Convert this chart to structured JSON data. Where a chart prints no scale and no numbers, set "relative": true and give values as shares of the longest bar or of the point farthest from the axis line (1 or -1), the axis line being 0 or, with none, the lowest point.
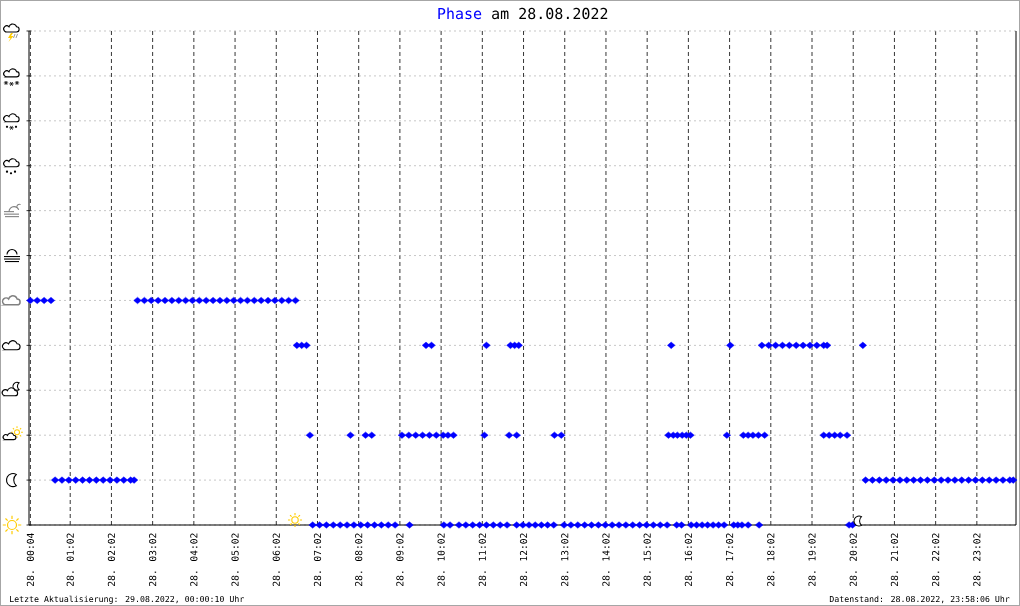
{
  "chart_data": {
    "type": "scatter",
    "title": "am 28.08.2022",
    "relative": true,
    "grid": true,
    "legend": "top",
    "marker": "diamond",
    "annotations": [
      "Letzte Aktualisierung: 29.08.2022, 00:00:10 Uhr",
      "Datenstand: 28.08.2022, 23:58:06 Uhr"
    ],
    "xlim": [
      "2022-08-28T00:02",
      "2022-08-28T23:59"
    ],
    "xticks": [
      {
        "value": "2022-08-28T00:04",
        "label": "28. 00:04"
      },
      {
        "value": "2022-08-28T01:02",
        "label": "28. 01:02"
      },
      {
        "value": "2022-08-28T02:02",
        "label": "28. 02:02"
      },
      {
        "value": "2022-08-28T03:02",
        "label": "28. 03:02"
      },
      {
        "value": "2022-08-28T04:02",
        "label": "28. 04:02"
      },
      {
        "value": "2022-08-28T05:02",
        "label": "28. 05:02"
      },
      {
        "value": "2022-08-28T06:02",
        "label": "28. 06:02"
      },
      {
        "value": "2022-08-28T07:02",
        "label": "28. 07:02"
      },
      {
        "value": "2022-08-28T08:02",
        "label": "28. 08:02"
      },
      {
        "value": "2022-08-28T09:02",
        "label": "28. 09:02"
      },
      {
        "value": "2022-08-28T10:02",
        "label": "28. 10:02"
      },
      {
        "value": "2022-08-28T11:02",
        "label": "28. 11:02"
      },
      {
        "value": "2022-08-28T12:02",
        "label": "28. 12:02"
      },
      {
        "value": "2022-08-28T13:02",
        "label": "28. 13:02"
      },
      {
        "value": "2022-08-28T14:02",
        "label": "28. 14:02"
      },
      {
        "value": "2022-08-28T15:02",
        "label": "28. 15:02"
      },
      {
        "value": "2022-08-28T16:02",
        "label": "28. 16:02"
      },
      {
        "value": "2022-08-28T17:02",
        "label": "28. 17:02"
      },
      {
        "value": "2022-08-28T18:02",
        "label": "28. 18:02"
      },
      {
        "value": "2022-08-28T19:02",
        "label": "28. 19:02"
      },
      {
        "value": "2022-08-28T20:02",
        "label": "28. 20:02"
      },
      {
        "value": "2022-08-28T21:02",
        "label": "28. 21:02"
      },
      {
        "value": "2022-08-28T22:02",
        "label": "28. 22:02"
      },
      {
        "value": "2022-08-28T23:02",
        "label": "28. 23:02"
      }
    ],
    "x": [
      "2022-08-28T00:04",
      "2022-08-28T00:14",
      "2022-08-28T00:24",
      "2022-08-28T00:34",
      "2022-08-28T00:40",
      "2022-08-28T00:50",
      "2022-08-28T01:00",
      "2022-08-28T01:10",
      "2022-08-28T01:20",
      "2022-08-28T01:30",
      "2022-08-28T01:40",
      "2022-08-28T01:50",
      "2022-08-28T02:00",
      "2022-08-28T02:10",
      "2022-08-28T02:20",
      "2022-08-28T02:30",
      "2022-08-28T02:35",
      "2022-08-28T02:40",
      "2022-08-28T02:50",
      "2022-08-28T03:00",
      "2022-08-28T03:10",
      "2022-08-28T03:20",
      "2022-08-28T03:30",
      "2022-08-28T03:40",
      "2022-08-28T03:50",
      "2022-08-28T04:00",
      "2022-08-28T04:10",
      "2022-08-28T04:20",
      "2022-08-28T04:30",
      "2022-08-28T04:40",
      "2022-08-28T04:50",
      "2022-08-28T05:00",
      "2022-08-28T05:10",
      "2022-08-28T05:20",
      "2022-08-28T05:30",
      "2022-08-28T05:40",
      "2022-08-28T05:50",
      "2022-08-28T06:00",
      "2022-08-28T06:10",
      "2022-08-28T06:20",
      "2022-08-28T06:30",
      "2022-08-28T06:32",
      "2022-08-28T06:39",
      "2022-08-28T06:46",
      "2022-08-28T06:51",
      "2022-08-28T06:55",
      "2022-08-28T07:05",
      "2022-08-28T07:15",
      "2022-08-28T07:25",
      "2022-08-28T07:35",
      "2022-08-28T07:45",
      "2022-08-28T07:50",
      "2022-08-28T07:55",
      "2022-08-28T08:05",
      "2022-08-28T08:12",
      "2022-08-28T08:15",
      "2022-08-28T08:21",
      "2022-08-28T08:25",
      "2022-08-28T08:35",
      "2022-08-28T08:45",
      "2022-08-28T08:55",
      "2022-08-28T09:05",
      "2022-08-28T09:15",
      "2022-08-28T09:16",
      "2022-08-28T09:25",
      "2022-08-28T09:35",
      "2022-08-28T09:40",
      "2022-08-28T09:45",
      "2022-08-28T09:48",
      "2022-08-28T09:55",
      "2022-08-28T10:05",
      "2022-08-28T10:06",
      "2022-08-28T10:12",
      "2022-08-28T10:15",
      "2022-08-28T10:20",
      "2022-08-28T10:28",
      "2022-08-28T10:38",
      "2022-08-28T10:48",
      "2022-08-28T10:58",
      "2022-08-28T11:05",
      "2022-08-28T11:08",
      "2022-08-28T11:08",
      "2022-08-28T11:18",
      "2022-08-28T11:28",
      "2022-08-28T11:38",
      "2022-08-28T11:41",
      "2022-08-28T11:43",
      "2022-08-28T11:49",
      "2022-08-28T11:52",
      "2022-08-28T11:52",
      "2022-08-28T11:55",
      "2022-08-28T12:01",
      "2022-08-28T12:10",
      "2022-08-28T12:19",
      "2022-08-28T12:28",
      "2022-08-28T12:37",
      "2022-08-28T12:46",
      "2022-08-28T12:47",
      "2022-08-28T12:57",
      "2022-08-28T13:01",
      "2022-08-28T13:11",
      "2022-08-28T13:21",
      "2022-08-28T13:31",
      "2022-08-28T13:41",
      "2022-08-28T13:51",
      "2022-08-28T14:01",
      "2022-08-28T14:11",
      "2022-08-28T14:21",
      "2022-08-28T14:31",
      "2022-08-28T14:41",
      "2022-08-28T14:51",
      "2022-08-28T15:01",
      "2022-08-28T15:11",
      "2022-08-28T15:21",
      "2022-08-28T15:31",
      "2022-08-28T15:33",
      "2022-08-28T15:37",
      "2022-08-28T15:40",
      "2022-08-28T15:45",
      "2022-08-28T15:46",
      "2022-08-28T15:52",
      "2022-08-28T15:53",
      "2022-08-28T15:59",
      "2022-08-28T16:05",
      "2022-08-28T16:06",
      "2022-08-28T16:14",
      "2022-08-28T16:22",
      "2022-08-28T16:30",
      "2022-08-28T16:38",
      "2022-08-28T16:46",
      "2022-08-28T16:54",
      "2022-08-28T16:58",
      "2022-08-28T17:03",
      "2022-08-28T17:08",
      "2022-08-28T17:14",
      "2022-08-28T17:20",
      "2022-08-28T17:22",
      "2022-08-28T17:29",
      "2022-08-28T17:29",
      "2022-08-28T17:36",
      "2022-08-28T17:44",
      "2022-08-28T17:45",
      "2022-08-28T17:49",
      "2022-08-28T17:53",
      "2022-08-28T17:59",
      "2022-08-28T18:09",
      "2022-08-28T18:19",
      "2022-08-28T18:29",
      "2022-08-28T18:39",
      "2022-08-28T18:49",
      "2022-08-28T18:59",
      "2022-08-28T19:09",
      "2022-08-28T19:19",
      "2022-08-28T19:19",
      "2022-08-28T19:24",
      "2022-08-28T19:27",
      "2022-08-28T19:35",
      "2022-08-28T19:43",
      "2022-08-28T19:53",
      "2022-08-28T19:56",
      "2022-08-28T20:01",
      "2022-08-28T20:16",
      "2022-08-28T20:20",
      "2022-08-28T20:30",
      "2022-08-28T20:40",
      "2022-08-28T20:50",
      "2022-08-28T21:00",
      "2022-08-28T21:10",
      "2022-08-28T21:20",
      "2022-08-28T21:30",
      "2022-08-28T21:40",
      "2022-08-28T21:50",
      "2022-08-28T22:00",
      "2022-08-28T22:10",
      "2022-08-28T22:20",
      "2022-08-28T22:30",
      "2022-08-28T22:40",
      "2022-08-28T22:50",
      "2022-08-28T23:00",
      "2022-08-28T23:10",
      "2022-08-28T23:20",
      "2022-08-28T23:30",
      "2022-08-28T23:40",
      "2022-08-28T23:50",
      "2022-08-28T23:55"
    ],
    "series": [
      {
        "name": "Phase",
        "color": "#0000ff",
        "values": [
          1,
          1,
          1,
          1,
          0.2,
          0.2,
          0.2,
          0.2,
          0.2,
          0.2,
          0.2,
          0.2,
          0.2,
          0.2,
          0.2,
          0.2,
          0.2,
          1,
          1,
          1,
          1,
          1,
          1,
          1,
          1,
          1,
          1,
          1,
          1,
          1,
          1,
          1,
          1,
          1,
          1,
          1,
          1,
          1,
          1,
          1,
          1,
          0.8,
          0.8,
          0.8,
          0.4,
          0,
          0,
          0,
          0,
          0,
          0,
          0.4,
          0,
          0,
          0.4,
          0,
          0.4,
          0,
          0,
          0,
          0,
          0.4,
          0.4,
          0,
          0.4,
          0.4,
          0.8,
          0.4,
          0.8,
          0.4,
          0.4,
          0,
          0.4,
          0,
          0.4,
          0,
          0,
          0,
          0,
          0.4,
          0,
          0.8,
          0,
          0,
          0,
          0.4,
          0.8,
          0.8,
          0.4,
          0,
          0.8,
          0,
          0,
          0,
          0,
          0,
          0,
          0.4,
          0.4,
          0,
          0,
          0,
          0,
          0,
          0,
          0,
          0,
          0,
          0,
          0,
          0,
          0,
          0,
          0,
          0,
          0.4,
          0.8,
          0.4,
          0,
          0.4,
          0,
          0.4,
          0.4,
          0.4,
          0,
          0,
          0,
          0,
          0,
          0,
          0,
          0.4,
          0.8,
          0,
          0,
          0,
          0.4,
          0.4,
          0,
          0.4,
          0.4,
          0,
          0.8,
          0.4,
          0.8,
          0.8,
          0.8,
          0.8,
          0.8,
          0.8,
          0.8,
          0.8,
          0.8,
          0.4,
          0.8,
          0.4,
          0.4,
          0.4,
          0.4,
          0,
          0,
          0.8,
          0.2,
          0.2,
          0.2,
          0.2,
          0.2,
          0.2,
          0.2,
          0.2,
          0.2,
          0.2,
          0.2,
          0.2,
          0.2,
          0.2,
          0.2,
          0.2,
          0.2,
          0.2,
          0.2,
          0.2,
          0.2,
          0.2,
          0.2
        ]
      }
    ]
  }
}
